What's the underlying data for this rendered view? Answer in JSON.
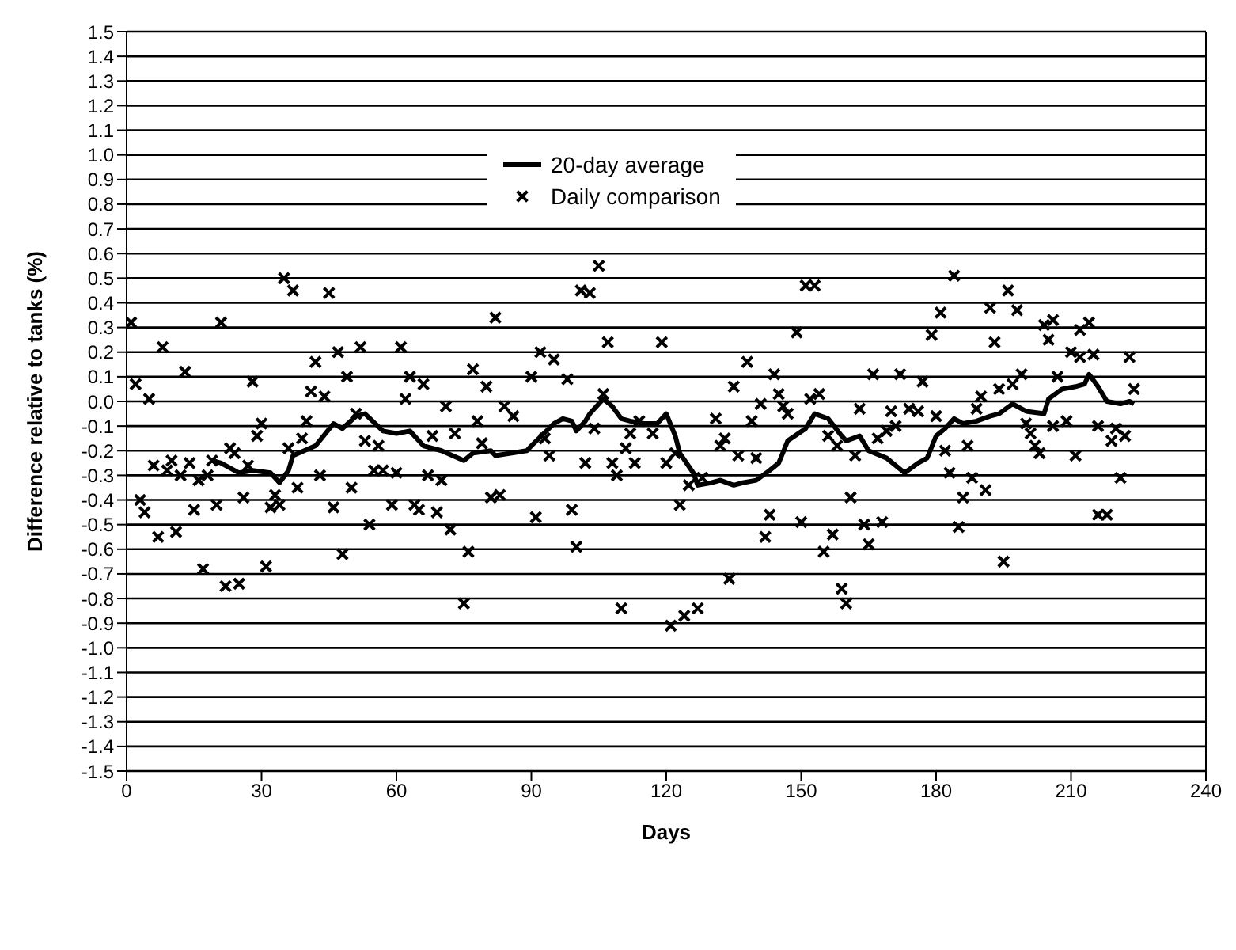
{
  "chart_data": {
    "type": "scatter",
    "xlabel": "Days",
    "ylabel": "Difference relative to tanks (%)",
    "xlim": [
      0,
      240
    ],
    "xticks": [
      0,
      30,
      60,
      90,
      120,
      150,
      180,
      210,
      240
    ],
    "ylim": [
      -1.5,
      1.5
    ],
    "yticks": [
      -1.5,
      -1.4,
      -1.3,
      -1.2,
      -1.1,
      {
        "value": -1,
        "label": "-1.0"
      },
      -0.9,
      -0.8,
      -0.7,
      -0.6,
      -0.5,
      -0.4,
      -0.3,
      -0.2,
      -0.1,
      {
        "value": 0,
        "label": "0.0"
      },
      0.1,
      0.2,
      0.3,
      0.4,
      0.5,
      0.6,
      0.7,
      0.8,
      0.9,
      {
        "value": 1,
        "label": "1.0"
      },
      1.1,
      1.2,
      1.3,
      1.4,
      1.5
    ],
    "grid": "y",
    "legend": "top",
    "series": [
      {
        "name": "20-day average",
        "type": "line",
        "color": "#000000",
        "line_style": "solid",
        "x": [
          19,
          21,
          23,
          25,
          28,
          32,
          34,
          36,
          37,
          42,
          46,
          48,
          51,
          53,
          57,
          60,
          63,
          66,
          70,
          75,
          77,
          81,
          82,
          89,
          90,
          95,
          97,
          99,
          100,
          102,
          103,
          106,
          108,
          110,
          112,
          115,
          118,
          120,
          122,
          123,
          126,
          127,
          130,
          132,
          135,
          137,
          140,
          143,
          145,
          147,
          151,
          153,
          156,
          159,
          160,
          163,
          165,
          169,
          173,
          176,
          178,
          180,
          182,
          184,
          186,
          189,
          192,
          194,
          197,
          200,
          204,
          205,
          208,
          211,
          213,
          214,
          216,
          218,
          221,
          223,
          224
        ],
        "values": [
          -0.24,
          -0.25,
          -0.27,
          -0.29,
          -0.28,
          -0.29,
          -0.33,
          -0.28,
          -0.22,
          -0.18,
          -0.09,
          -0.11,
          -0.06,
          -0.05,
          -0.12,
          -0.13,
          -0.12,
          -0.18,
          -0.2,
          -0.24,
          -0.21,
          -0.2,
          -0.22,
          -0.2,
          -0.18,
          -0.09,
          -0.07,
          -0.08,
          -0.12,
          -0.08,
          -0.05,
          0.01,
          -0.02,
          -0.07,
          -0.08,
          -0.09,
          -0.09,
          -0.05,
          -0.14,
          -0.21,
          -0.29,
          -0.34,
          -0.33,
          -0.32,
          -0.34,
          -0.33,
          -0.32,
          -0.28,
          -0.25,
          -0.16,
          -0.11,
          -0.05,
          -0.07,
          -0.14,
          -0.16,
          -0.14,
          -0.2,
          -0.23,
          -0.29,
          -0.25,
          -0.23,
          -0.14,
          -0.11,
          -0.07,
          -0.09,
          -0.08,
          -0.06,
          -0.05,
          -0.01,
          -0.04,
          -0.05,
          0.01,
          0.05,
          0.06,
          0.07,
          0.11,
          0.06,
          0,
          -0.01,
          0,
          -0.01
        ]
      },
      {
        "name": "Daily comparison",
        "color": "#000000",
        "marker": "cross",
        "x": [
          1,
          2,
          3,
          4,
          5,
          6,
          7,
          8,
          9,
          10,
          11,
          12,
          13,
          14,
          15,
          16,
          17,
          18,
          19,
          20,
          21,
          22,
          23,
          24,
          25,
          26,
          27,
          28,
          29,
          30,
          31,
          32,
          33,
          34,
          35,
          36,
          37,
          38,
          39,
          40,
          41,
          42,
          43,
          44,
          45,
          46,
          47,
          48,
          49,
          50,
          51,
          52,
          53,
          54,
          55,
          56,
          57,
          59,
          60,
          61,
          62,
          63,
          64,
          65,
          66,
          67,
          68,
          69,
          70,
          71,
          72,
          73,
          75,
          76,
          77,
          78,
          79,
          80,
          81,
          82,
          83,
          84,
          86,
          90,
          91,
          92,
          93,
          94,
          95,
          98,
          99,
          100,
          101,
          102,
          103,
          104,
          105,
          106,
          107,
          108,
          109,
          110,
          111,
          112,
          113,
          114,
          117,
          119,
          120,
          121,
          122,
          123,
          124,
          125,
          127,
          128,
          131,
          132,
          133,
          134,
          135,
          136,
          138,
          139,
          140,
          141,
          142,
          143,
          144,
          145,
          146,
          147,
          149,
          150,
          151,
          152,
          153,
          154,
          155,
          156,
          157,
          158,
          159,
          160,
          161,
          162,
          163,
          164,
          165,
          166,
          167,
          168,
          169,
          170,
          171,
          172,
          174,
          176,
          177,
          179,
          180,
          181,
          182,
          183,
          184,
          185,
          186,
          187,
          188,
          189,
          190,
          191,
          192,
          193,
          194,
          195,
          196,
          197,
          198,
          199,
          200,
          201,
          202,
          203,
          204,
          205,
          206,
          206,
          207,
          209,
          210,
          211,
          212,
          212,
          214,
          215,
          216,
          216,
          218,
          219,
          220,
          221,
          222,
          223,
          224
        ],
        "values": [
          0.32,
          0.07,
          -0.4,
          -0.45,
          0.01,
          -0.26,
          -0.55,
          0.22,
          -0.28,
          -0.24,
          -0.53,
          -0.3,
          0.12,
          -0.25,
          -0.44,
          -0.32,
          -0.68,
          -0.3,
          -0.24,
          -0.42,
          0.32,
          -0.75,
          -0.19,
          -0.21,
          -0.74,
          -0.39,
          -0.26,
          0.08,
          -0.14,
          -0.09,
          -0.67,
          -0.43,
          -0.38,
          -0.42,
          0.5,
          -0.19,
          0.45,
          -0.35,
          -0.15,
          -0.08,
          0.04,
          0.16,
          -0.3,
          0.02,
          0.44,
          -0.43,
          0.2,
          -0.62,
          0.1,
          -0.35,
          -0.05,
          0.22,
          -0.16,
          -0.5,
          -0.28,
          -0.18,
          -0.28,
          -0.42,
          -0.29,
          0.22,
          0.01,
          0.1,
          -0.42,
          -0.44,
          0.07,
          -0.3,
          -0.14,
          -0.45,
          -0.32,
          -0.02,
          -0.52,
          -0.13,
          -0.82,
          -0.61,
          0.13,
          -0.08,
          -0.17,
          0.06,
          -0.39,
          0.34,
          -0.38,
          -0.02,
          -0.06,
          0.1,
          -0.47,
          0.2,
          -0.15,
          -0.22,
          0.17,
          0.09,
          -0.44,
          -0.59,
          0.45,
          -0.25,
          0.44,
          -0.11,
          0.55,
          0.03,
          0.24,
          -0.25,
          -0.3,
          -0.84,
          -0.19,
          -0.13,
          -0.25,
          -0.08,
          -0.13,
          0.24,
          -0.25,
          -0.91,
          -0.21,
          -0.42,
          -0.87,
          -0.34,
          -0.84,
          -0.31,
          -0.07,
          -0.18,
          -0.15,
          -0.72,
          0.06,
          -0.22,
          0.16,
          -0.08,
          -0.23,
          -0.01,
          -0.55,
          -0.46,
          0.11,
          0.03,
          -0.02,
          -0.05,
          0.28,
          -0.49,
          0.47,
          0.01,
          0.47,
          0.03,
          -0.61,
          -0.14,
          -0.54,
          -0.18,
          -0.76,
          -0.82,
          -0.39,
          -0.22,
          -0.03,
          -0.5,
          -0.58,
          0.11,
          -0.15,
          -0.49,
          -0.12,
          -0.04,
          -0.1,
          0.11,
          -0.03,
          -0.04,
          0.08,
          0.27,
          -0.06,
          0.36,
          -0.2,
          -0.29,
          0.51,
          -0.51,
          -0.39,
          -0.18,
          -0.31,
          -0.03,
          0.02,
          -0.36,
          0.38,
          0.24,
          0.05,
          -0.65,
          0.45,
          0.07,
          0.37,
          0.11,
          -0.09,
          -0.13,
          -0.18,
          -0.21,
          0.31,
          0.25,
          0.33,
          -0.1,
          0.1,
          -0.08,
          0.2,
          -0.22,
          0.29,
          0.18,
          0.32,
          0.19,
          -0.1,
          -0.46,
          -0.46,
          -0.16,
          -0.11,
          -0.31,
          -0.14,
          0.18,
          0.05
        ]
      }
    ]
  }
}
